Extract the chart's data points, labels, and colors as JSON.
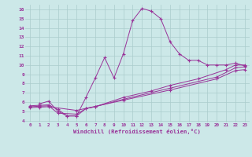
{
  "bg_color": "#cce8e8",
  "line_color": "#993399",
  "grid_color": "#aacccc",
  "xlabel": "Windchill (Refroidissement éolien,°C)",
  "xlabel_color": "#993399",
  "tick_color": "#993399",
  "xlim": [
    -0.5,
    23.5
  ],
  "ylim": [
    3.8,
    16.5
  ],
  "yticks": [
    4,
    5,
    6,
    7,
    8,
    9,
    10,
    11,
    12,
    13,
    14,
    15,
    16
  ],
  "xticks": [
    0,
    1,
    2,
    3,
    4,
    5,
    6,
    7,
    8,
    9,
    10,
    11,
    12,
    13,
    14,
    15,
    16,
    17,
    18,
    19,
    20,
    21,
    22,
    23
  ],
  "curve1_x": [
    1,
    2,
    3,
    4,
    5,
    6,
    7,
    8,
    9,
    10,
    11,
    12,
    13,
    14,
    15,
    16,
    17,
    18,
    19,
    20,
    21,
    22,
    23
  ],
  "curve1_y": [
    5.8,
    6.1,
    5.0,
    4.5,
    4.5,
    6.5,
    8.6,
    10.8,
    8.6,
    11.2,
    14.8,
    16.1,
    15.8,
    15.0,
    12.5,
    11.2,
    10.5,
    10.5,
    10.0,
    10.0,
    10.0,
    10.2,
    9.9
  ],
  "line2_x": [
    0,
    1,
    2,
    3,
    4,
    5,
    6,
    7,
    10,
    13,
    15,
    18,
    21,
    22,
    23
  ],
  "line2_y": [
    5.6,
    5.65,
    5.7,
    5.2,
    4.5,
    4.5,
    5.3,
    5.5,
    6.5,
    7.2,
    7.8,
    8.5,
    9.5,
    10.0,
    10.0
  ],
  "line3_x": [
    0,
    1,
    2,
    3,
    5,
    6,
    7,
    10,
    15,
    20,
    22,
    23
  ],
  "line3_y": [
    5.5,
    5.55,
    5.6,
    4.8,
    4.7,
    5.3,
    5.5,
    6.3,
    7.5,
    8.7,
    9.7,
    9.8
  ],
  "line4_x": [
    0,
    1,
    2,
    5,
    10,
    15,
    20,
    22,
    23
  ],
  "line4_y": [
    5.4,
    5.45,
    5.5,
    5.1,
    6.2,
    7.3,
    8.5,
    9.4,
    9.5
  ]
}
